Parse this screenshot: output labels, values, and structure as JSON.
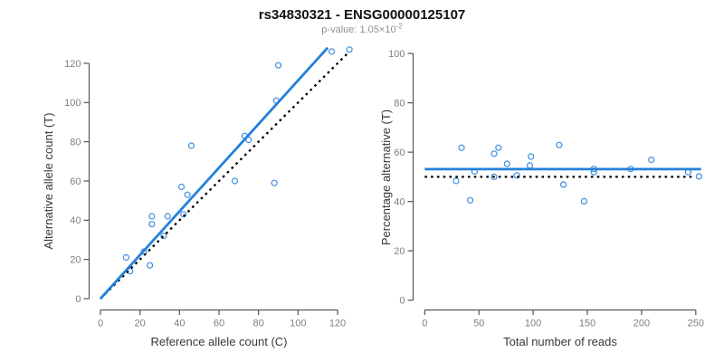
{
  "header": {
    "title": "rs34830321 - ENSG00000125107",
    "pvalue_prefix": "p-value: 1.05×10",
    "pvalue_exponent": "-2"
  },
  "colors": {
    "point_blue": "#3E8EDE",
    "line_blue": "#2480DB",
    "reference_black": "#000000",
    "axis_gray": "#555555",
    "tick_label_gray": "#7F7F7F",
    "label_dark": "#383838",
    "title_black": "#111111",
    "subtitle_gray": "#909090"
  },
  "chart_data": [
    {
      "type": "scatter",
      "panel": "left",
      "xlabel": "Reference allele count (C)",
      "ylabel": "Alternative allele count (T)",
      "xlim": [
        0,
        130
      ],
      "ylim": [
        0,
        130
      ],
      "xticks": [
        0,
        20,
        40,
        60,
        80,
        100,
        120
      ],
      "yticks": [
        0,
        20,
        40,
        60,
        80,
        100,
        120
      ],
      "grid": false,
      "points": [
        [
          13,
          21
        ],
        [
          15,
          14
        ],
        [
          25,
          17
        ],
        [
          22,
          24
        ],
        [
          26,
          38
        ],
        [
          26,
          42
        ],
        [
          32,
          32
        ],
        [
          34,
          42
        ],
        [
          42,
          43
        ],
        [
          41,
          57
        ],
        [
          44,
          53
        ],
        [
          46,
          78
        ],
        [
          68,
          60
        ],
        [
          73,
          83
        ],
        [
          75,
          81
        ],
        [
          88,
          59
        ],
        [
          89,
          101
        ],
        [
          90,
          119
        ],
        [
          117,
          126
        ],
        [
          126,
          127
        ]
      ],
      "lines": [
        {
          "name": "fitted",
          "x1": 0,
          "y1": 0,
          "x2": 115,
          "y2": 128,
          "style": "solid",
          "color_key": "line_blue"
        },
        {
          "name": "identity",
          "x1": 0,
          "y1": 0,
          "x2": 125,
          "y2": 125,
          "style": "dotted",
          "color_key": "reference_black"
        }
      ]
    },
    {
      "type": "scatter",
      "panel": "right",
      "xlabel": "Total number of reads",
      "ylabel": "Percentage alternative (T)",
      "xlim": [
        0,
        257
      ],
      "ylim": [
        0,
        100
      ],
      "xticks": [
        0,
        50,
        100,
        150,
        200,
        250
      ],
      "yticks": [
        0,
        20,
        40,
        60,
        80,
        100
      ],
      "grid": false,
      "points": [
        [
          34,
          61.8
        ],
        [
          29,
          48.3
        ],
        [
          42,
          40.5
        ],
        [
          46,
          52.2
        ],
        [
          64,
          59.4
        ],
        [
          68,
          61.8
        ],
        [
          64,
          50.0
        ],
        [
          76,
          55.3
        ],
        [
          85,
          50.6
        ],
        [
          98,
          58.2
        ],
        [
          97,
          54.6
        ],
        [
          124,
          62.9
        ],
        [
          128,
          46.9
        ],
        [
          156,
          53.2
        ],
        [
          156,
          51.9
        ],
        [
          147,
          40.1
        ],
        [
          190,
          53.2
        ],
        [
          209,
          56.9
        ],
        [
          243,
          51.9
        ],
        [
          253,
          50.2
        ]
      ],
      "lines": [
        {
          "name": "fitted-mean",
          "x1": 0,
          "y1": 53.1,
          "x2": 255,
          "y2": 53.1,
          "style": "solid",
          "color_key": "line_blue"
        },
        {
          "name": "expected-50pct",
          "x1": 0,
          "y1": 50,
          "x2": 248,
          "y2": 50,
          "style": "dotted",
          "color_key": "reference_black"
        }
      ]
    }
  ]
}
